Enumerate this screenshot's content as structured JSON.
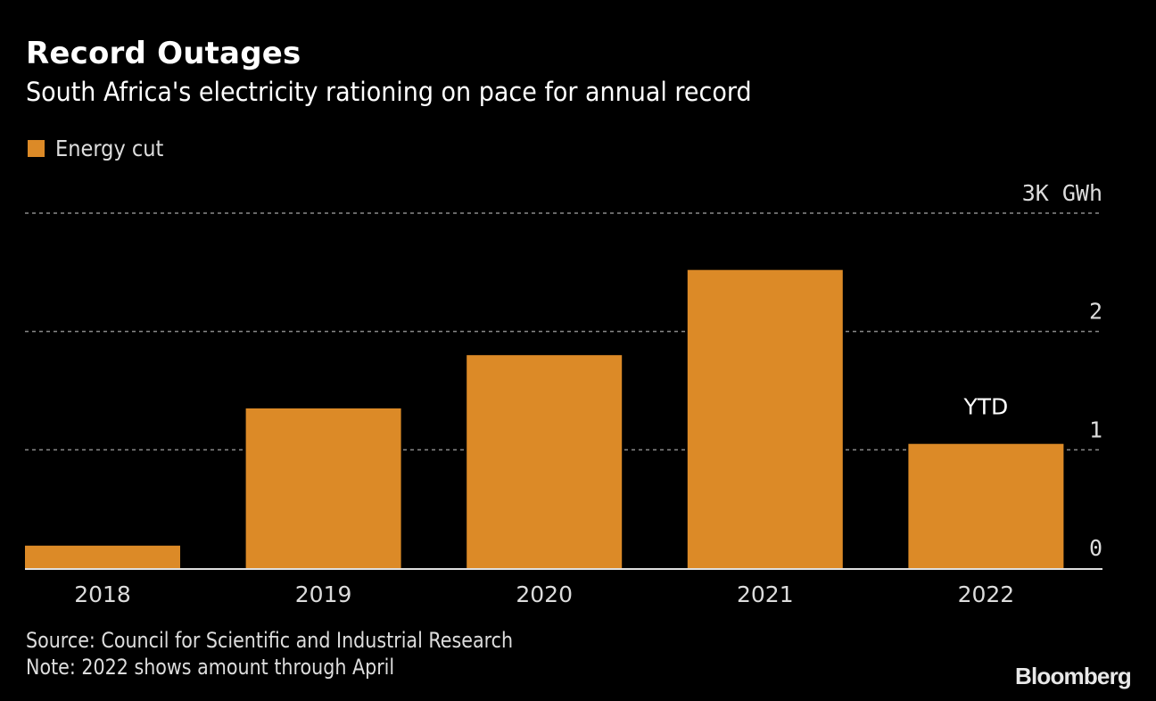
{
  "title": "Record Outages",
  "subtitle": "South Africa's electricity rationing on pace for annual record",
  "legend": {
    "label": "Energy cut",
    "color": "#dc8a27"
  },
  "footer": {
    "source": "Source: Council for Scientific and Industrial Research",
    "note": "Note: 2022 shows amount through April"
  },
  "brand": "Bloomberg",
  "chart_data": {
    "type": "bar",
    "title": "Record Outages",
    "subtitle": "South Africa's electricity rationing on pace for annual record",
    "categories": [
      "2018",
      "2019",
      "2020",
      "2021",
      "2022"
    ],
    "series": [
      {
        "name": "Energy cut",
        "values": [
          0.19,
          1.35,
          1.8,
          2.52,
          1.05
        ],
        "color": "#dc8a27"
      }
    ],
    "unit": "K GWh",
    "xlabel": "",
    "ylabel": "",
    "ylim": [
      0,
      3
    ],
    "yticks": [
      0,
      1,
      2,
      3
    ],
    "ytick_labels": [
      "0",
      "1",
      "2",
      "3K GWh"
    ],
    "grid": true,
    "legend_position": "top-left",
    "annotations": [
      {
        "category": "2022",
        "text": "YTD"
      }
    ]
  }
}
